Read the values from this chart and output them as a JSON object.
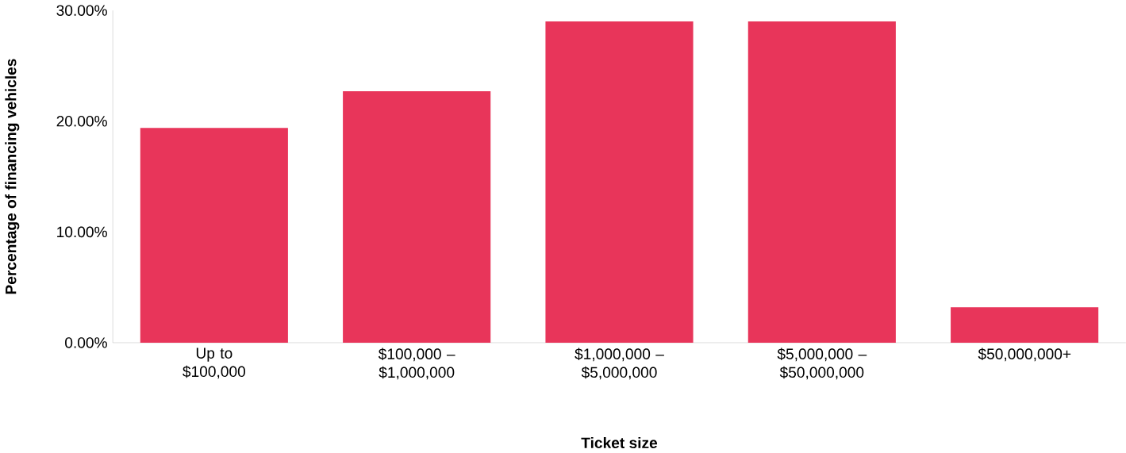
{
  "chart_data": {
    "type": "bar",
    "xlabel": "Ticket size",
    "ylabel": "Percentage of financing vehicles",
    "categories": [
      "Up to $100,000",
      "$100,000 – $1,000,000",
      "$1,000,000 – $5,000,000",
      "$5,000,000 – $50,000,000",
      "$50,000,000+"
    ],
    "values": [
      19.4,
      22.7,
      29.0,
      29.0,
      3.2
    ],
    "color": "#e8355a",
    "ylim": [
      0,
      30
    ],
    "yticks": [
      {
        "value": 0,
        "label": "0.00%"
      },
      {
        "value": 10,
        "label": "10.00%"
      },
      {
        "value": 20,
        "label": "20.00%"
      },
      {
        "value": 30,
        "label": "30.00%"
      }
    ],
    "grid": false
  }
}
